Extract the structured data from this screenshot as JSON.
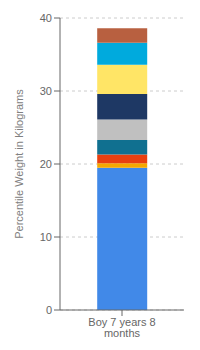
{
  "chart_data": {
    "type": "bar",
    "categories": [
      "Boy 7 years 8 months"
    ],
    "series": [
      {
        "color": "#4189E8",
        "values": [
          19.5
        ]
      },
      {
        "color": "#F5A800",
        "values": [
          0.6
        ]
      },
      {
        "color": "#E84010",
        "values": [
          1.2
        ]
      },
      {
        "color": "#107090",
        "values": [
          2.0
        ]
      },
      {
        "color": "#C0C0C0",
        "values": [
          2.8
        ]
      },
      {
        "color": "#1E3864",
        "values": [
          3.5
        ]
      },
      {
        "color": "#FFE566",
        "values": [
          4.0
        ]
      },
      {
        "color": "#00AADD",
        "values": [
          3.0
        ]
      },
      {
        "color": "#B86040",
        "values": [
          2.0
        ]
      }
    ],
    "ylabel": "Percentile Weight in Kilograms",
    "ylim": [
      0,
      40
    ],
    "yticks": [
      0,
      10,
      20,
      30,
      40
    ],
    "stacked": true,
    "grid": true
  }
}
